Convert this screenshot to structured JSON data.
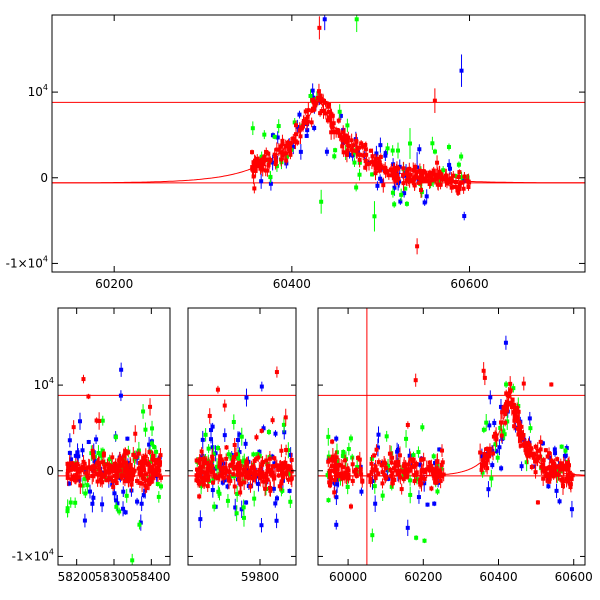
{
  "chart_data": [
    {
      "type": "scatter",
      "title": "",
      "xlabel": "",
      "ylabel": "",
      "xlim": [
        60130,
        60730
      ],
      "ylim": [
        -11000,
        19000
      ],
      "x_ticks": [
        60200,
        60400,
        60600
      ],
      "x_tick_labels": [
        "60200",
        "60400",
        "60600"
      ],
      "y_ticks": [
        -10000,
        0,
        10000
      ],
      "y_tick_labels": [
        {
          "base": "-1×10",
          "exp": "4"
        },
        {
          "base": "0",
          "exp": ""
        },
        {
          "base": "10",
          "exp": "4"
        }
      ],
      "hlines": [
        8800,
        -600
      ],
      "model_curve": {
        "baseline": -600,
        "peak_x": 60430,
        "peak_y": 9400,
        "tau": 42,
        "color": "#ff0000"
      },
      "series": [
        {
          "color": "#0000ff",
          "x_range": [
            60355,
            60600
          ],
          "n": 60,
          "scatter": 1800,
          "outliers": [
            [
              60437,
              18500
            ],
            [
              60591,
              12500
            ],
            [
              60541,
              1200
            ]
          ]
        },
        {
          "color": "#00ff00",
          "x_range": [
            60355,
            60600
          ],
          "n": 55,
          "scatter": 2200,
          "outliers": [
            [
              60433,
              -2800
            ],
            [
              60493,
              -4500
            ],
            [
              60473,
              18500
            ],
            [
              60533,
              4000
            ]
          ]
        },
        {
          "color": "#ff0000",
          "x_range": [
            60355,
            60600
          ],
          "n": 300,
          "scatter": 700,
          "outliers": [
            [
              60541,
              -8000
            ],
            [
              60561,
              9000
            ],
            [
              60431,
              17500
            ]
          ]
        }
      ]
    },
    {
      "type": "scatter",
      "title": "",
      "xlabel": "",
      "ylabel": "",
      "ylim": [
        -11000,
        19000
      ],
      "panels": [
        {
          "xlim": [
            58150,
            58450
          ],
          "x_ticks": [
            58200,
            58300,
            58400
          ],
          "x_tick_labels": [
            "58200",
            "58300",
            "58400"
          ],
          "data_range": [
            58175,
            58430
          ]
        },
        {
          "xlim": [
            59620,
            59890
          ],
          "x_ticks": [
            59800
          ],
          "x_tick_labels": [
            "59800"
          ],
          "data_range": [
            59640,
            59880
          ]
        },
        {
          "xlim": [
            59920,
            60630
          ],
          "x_ticks": [
            60000,
            60200,
            60400,
            60600
          ],
          "x_tick_labels": [
            "60000",
            "60200",
            "60400",
            "60600"
          ],
          "data_range": [
            59945,
            60600
          ]
        }
      ],
      "y_ticks": [
        -10000,
        0,
        10000
      ],
      "y_tick_labels": [
        {
          "base": "-1×10",
          "exp": "4"
        },
        {
          "base": "0",
          "exp": ""
        },
        {
          "base": "10",
          "exp": "4"
        }
      ],
      "hlines": [
        8800,
        -600
      ],
      "vline": 60050,
      "model_curve": {
        "baseline": -600,
        "peak_x": 60430,
        "peak_y": 9400,
        "tau": 42,
        "color": "#ff0000"
      },
      "series_colors": [
        "#0000ff",
        "#00ff00",
        "#ff0000"
      ]
    }
  ]
}
